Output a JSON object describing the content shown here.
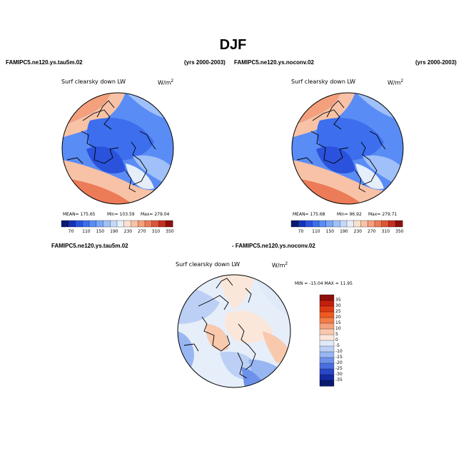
{
  "figure": {
    "season": "DJF"
  },
  "top_row": {
    "left_header": {
      "case": "FAMIPC5.ne120.ys.tau5m.02",
      "years": "(yrs 2000-2003)"
    },
    "right_header": {
      "case": "FAMIPC5.ne120.ys.noconv.02",
      "years": "(yrs 2000-2003)"
    }
  },
  "panels": [
    {
      "id": "left",
      "variable": "Surf clearsky down LW",
      "units_base": "W/m",
      "units_exp": "2",
      "mean_text": "MEAN= 175.65",
      "min_text": "Min= 103.59",
      "max_text": "Max= 279.04"
    },
    {
      "id": "right",
      "variable": "Surf clearsky down LW",
      "units_base": "W/m",
      "units_exp": "2",
      "mean_text": "MEAN= 175.68",
      "min_text": "Min= 96.92",
      "max_text": "Max= 279.71"
    },
    {
      "id": "diff",
      "case_left": "FAMIPC5.ne120.ys.tau5m.02",
      "case_right": "- FAMIPC5.ne120.ys.noconv.02",
      "variable": "Surf clearsky down LW",
      "units_base": "W/m",
      "units_exp": "2",
      "stats_text": "MIN = -15.04  MAX =  11.95"
    }
  ],
  "horizontal_colorbar": {
    "labels": [
      "70",
      "110",
      "150",
      "190",
      "230",
      "270",
      "310",
      "350"
    ],
    "colors": [
      "#0a1a6e",
      "#1432b4",
      "#2a52dc",
      "#3c6eee",
      "#5a8cf5",
      "#7aa6f7",
      "#9fc0f8",
      "#c4d8f9",
      "#e6eefa",
      "#fbe0d0",
      "#f8c2a6",
      "#f4a07c",
      "#ec7b58",
      "#dc563a",
      "#c23022",
      "#8e0f0c"
    ]
  },
  "vertical_colorbar": {
    "labels": [
      "35",
      "30",
      "25",
      "20",
      "15",
      "10",
      "5",
      "0",
      "-5",
      "-10",
      "-15",
      "-20",
      "-25",
      "-30",
      "-35"
    ],
    "colors": [
      "#8e0f0c",
      "#c21f0e",
      "#dd3a14",
      "#ef5a22",
      "#f37c48",
      "#f6a27e",
      "#f9c9ae",
      "#fbe7da",
      "#dfe9f8",
      "#bcd0f5",
      "#98b6f2",
      "#6e92ea",
      "#4a6ee0",
      "#2a47c8",
      "#142aa2",
      "#0a1a6e"
    ]
  },
  "map_colors": {
    "land_outline": "#000000",
    "deep_blue": "#2f5fe0",
    "mid_blue": "#5a8cf5",
    "light_blue": "#a9c6f8",
    "pale_blue": "#dbe6fb",
    "pale_orange": "#fbdcc8",
    "orange": "#f6a27e",
    "red_orange": "#ec7b58"
  }
}
